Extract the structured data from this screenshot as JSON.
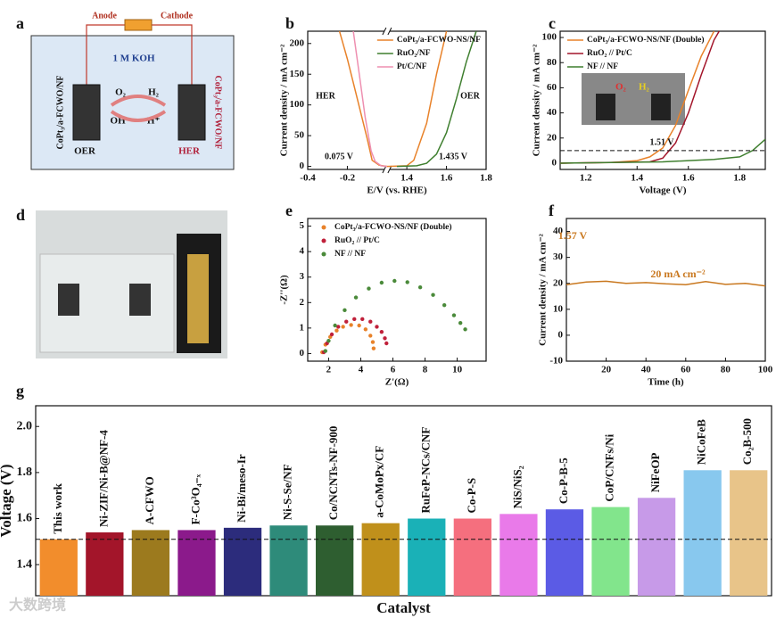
{
  "diagram": {
    "panel": "a",
    "anode": "Anode",
    "cathode": "Cathode",
    "electrolyte": "1 M KOH",
    "left_electrode": "CoPt₃/a-FCWO/NF",
    "right_electrode": "CoPt₃/a-FCWO/NF",
    "left_gas": "O₂",
    "right_gas": "H₂",
    "left_ion": "OH⁻",
    "right_ion": "H⁺",
    "left_reaction": "OER",
    "right_reaction": "HER"
  },
  "photo": {
    "panel": "d"
  },
  "watermark": "大数跨境",
  "chart_data": [
    {
      "panel": "b",
      "type": "line",
      "xlabel": "E/V (vs. RHE)",
      "ylabel": "Current density / mA cm⁻²",
      "xlim": [
        -0.4,
        1.8
      ],
      "axis_break": [
        0,
        1.3
      ],
      "xticks": [
        -0.4,
        -0.2,
        1.4,
        1.6,
        1.8
      ],
      "ylim": [
        -5,
        220
      ],
      "yticks": [
        0,
        50,
        100,
        150,
        200
      ],
      "legend": "upper right",
      "annotations": [
        "HER",
        "OER",
        "0.075 V",
        "1.435 V"
      ],
      "series": [
        {
          "name": "CoPt₃/a-FCWO-NS/NF",
          "color": "#e8822a",
          "x": [
            -0.24,
            -0.2,
            -0.15,
            -0.1,
            -0.075,
            -0.04,
            0,
            1.3,
            1.4,
            1.435,
            1.5,
            1.55,
            1.6
          ],
          "values": [
            220,
            175,
            110,
            45,
            10,
            2,
            0,
            0,
            1,
            10,
            70,
            150,
            220
          ]
        },
        {
          "name": "RuO₂/NF",
          "color": "#3f7f2f",
          "x": [
            1.35,
            1.45,
            1.5,
            1.55,
            1.6,
            1.65,
            1.7,
            1.75
          ],
          "values": [
            0,
            1,
            5,
            20,
            55,
            110,
            170,
            220
          ]
        },
        {
          "name": "Pt/C/NF",
          "color": "#ee8fb0",
          "x": [
            -0.17,
            -0.14,
            -0.11,
            -0.08,
            -0.06,
            -0.03,
            0
          ],
          "values": [
            220,
            150,
            80,
            25,
            8,
            1,
            0
          ]
        }
      ]
    },
    {
      "panel": "c",
      "type": "line",
      "xlabel": "Voltage (V)",
      "ylabel": "Current density / mA cm⁻²",
      "xlim": [
        1.1,
        1.9
      ],
      "xticks": [
        1.2,
        1.4,
        1.6,
        1.8
      ],
      "ylim": [
        -5,
        105
      ],
      "yticks": [
        0,
        20,
        40,
        60,
        80,
        100
      ],
      "legend": "upper left",
      "reference_line": 10,
      "annotations": [
        "1.51 V"
      ],
      "inset_labels": [
        "O₂",
        "H₂"
      ],
      "series": [
        {
          "name": "CoPt₃/a-FCWO-NS/NF (Double)",
          "color": "#e8822a",
          "x": [
            1.1,
            1.3,
            1.4,
            1.45,
            1.5,
            1.55,
            1.6,
            1.65,
            1.7
          ],
          "values": [
            0,
            0.5,
            2,
            5,
            12,
            30,
            58,
            85,
            105
          ]
        },
        {
          "name": "RuO₂ // Pt/C",
          "color": "#a3152a",
          "x": [
            1.1,
            1.45,
            1.5,
            1.55,
            1.6,
            1.65,
            1.7,
            1.72
          ],
          "values": [
            0,
            1,
            4,
            16,
            40,
            70,
            98,
            105
          ]
        },
        {
          "name": "NF // NF",
          "color": "#3f7f2f",
          "x": [
            1.1,
            1.5,
            1.7,
            1.8,
            1.85,
            1.9
          ],
          "values": [
            0,
            1,
            3,
            5,
            10,
            19
          ]
        }
      ]
    },
    {
      "panel": "e",
      "type": "scatter",
      "xlabel": "Z'(Ω)",
      "ylabel": "-Z''(Ω)",
      "xlim": [
        0.7,
        11.8
      ],
      "xticks": [
        2,
        4,
        6,
        8,
        10
      ],
      "ylim": [
        -0.3,
        5.3
      ],
      "yticks": [
        0,
        1,
        2,
        3,
        4,
        5
      ],
      "legend": "upper left",
      "series": [
        {
          "name": "CoPt₃/a-FCWO-NS/NF (Double)",
          "color": "#e8822a",
          "x": [
            1.6,
            1.8,
            2.1,
            2.5,
            2.9,
            3.4,
            3.9,
            4.3,
            4.6,
            4.75,
            4.8
          ],
          "values": [
            0.05,
            0.35,
            0.65,
            0.9,
            1.05,
            1.12,
            1.1,
            0.95,
            0.7,
            0.45,
            0.2
          ]
        },
        {
          "name": "RuO₂ // Pt/C",
          "color": "#c0203a",
          "x": [
            1.7,
            1.9,
            2.2,
            2.6,
            3.1,
            3.6,
            4.1,
            4.6,
            5.0,
            5.3,
            5.5,
            5.6
          ],
          "values": [
            0.05,
            0.4,
            0.75,
            1.05,
            1.25,
            1.35,
            1.35,
            1.25,
            1.05,
            0.85,
            0.6,
            0.4
          ]
        },
        {
          "name": "NF // NF",
          "color": "#4a8a3a",
          "x": [
            1.8,
            2.0,
            2.4,
            3.0,
            3.7,
            4.5,
            5.3,
            6.1,
            6.9,
            7.7,
            8.5,
            9.2,
            9.8,
            10.2,
            10.5
          ],
          "values": [
            0.1,
            0.5,
            1.1,
            1.7,
            2.2,
            2.55,
            2.78,
            2.85,
            2.8,
            2.6,
            2.3,
            1.9,
            1.5,
            1.2,
            0.95
          ]
        }
      ]
    },
    {
      "panel": "f",
      "type": "line",
      "xlabel": "Time (h)",
      "ylabel": "Current density / mA cm⁻²",
      "xlim": [
        0,
        100
      ],
      "xticks": [
        20,
        40,
        60,
        80,
        100
      ],
      "ylim": [
        -10,
        45
      ],
      "yticks": [
        -10,
        0,
        10,
        20,
        30,
        40
      ],
      "annotations": [
        "1.57 V",
        "20 mA cm⁻²"
      ],
      "series": [
        {
          "color": "#c9781f",
          "x": [
            0,
            10,
            20,
            30,
            40,
            50,
            60,
            70,
            80,
            90,
            100
          ],
          "values": [
            19.5,
            20.5,
            20.8,
            20,
            20.3,
            19.8,
            19.5,
            20.7,
            19.6,
            20,
            19
          ]
        }
      ]
    },
    {
      "panel": "g",
      "type": "bar",
      "xlabel": "Catalyst",
      "ylabel": "Voltage (V)",
      "ylim": [
        1.265,
        2.09
      ],
      "yticks": [
        1.4,
        1.6,
        1.8,
        {
          "value": 2,
          "label": "2.0"
        }
      ],
      "reference_line": 1.51,
      "categories": [
        "This work",
        "Ni-ZIF/Ni-B@NF-4",
        "A-CFWO",
        "F-Co³O₄₋ₓ",
        "Ni-Bi/meso-Ir",
        "Ni-S-Se/NF",
        "Co/NCNTs-NF-900",
        "a-CoMoPx/CF",
        "RuFeP-NCs/CNF",
        "Co-P-S",
        "NiS/NiS₂",
        "Co-P-B-5",
        "CoP/CNFs/Ni",
        "NiFeOP",
        "NiCoFeB",
        "Co₂B-500"
      ],
      "values": [
        1.51,
        1.54,
        1.55,
        1.55,
        1.56,
        1.57,
        1.57,
        1.58,
        1.6,
        1.6,
        1.62,
        1.64,
        1.65,
        1.69,
        1.81,
        1.81
      ],
      "colors": [
        "#f28d2c",
        "#a3152a",
        "#9c7a1e",
        "#8b1a8b",
        "#2c2c7c",
        "#2e8b7a",
        "#2e5e30",
        "#c0901b",
        "#1ab1b7",
        "#f56f7e",
        "#e97ae9",
        "#5b5be5",
        "#82e58c",
        "#c79ae8",
        "#88c8ee",
        "#e8c489"
      ]
    }
  ]
}
